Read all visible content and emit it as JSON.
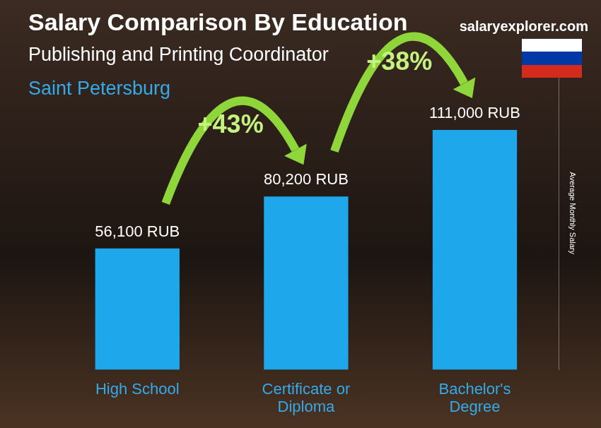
{
  "chart_data": {
    "type": "bar",
    "title": "Salary Comparison By Education",
    "subtitle": "Publishing and Printing Coordinator",
    "location": "Saint Petersburg",
    "source": "salaryexplorer.com",
    "y_label": "Average Monthly Salary",
    "categories": [
      "High School",
      "Certificate or Diploma",
      "Bachelor's Degree"
    ],
    "values": [
      56100,
      80200,
      111000
    ],
    "value_labels": [
      "56,100 RUB",
      "80,200 RUB",
      "111,000 RUB"
    ],
    "annotations": [
      "+43%",
      "+38%"
    ],
    "color": "#1ea7ea",
    "ylim": [
      0,
      145000
    ],
    "grid": false,
    "data_labels": true,
    "tick_labels": "x"
  }
}
